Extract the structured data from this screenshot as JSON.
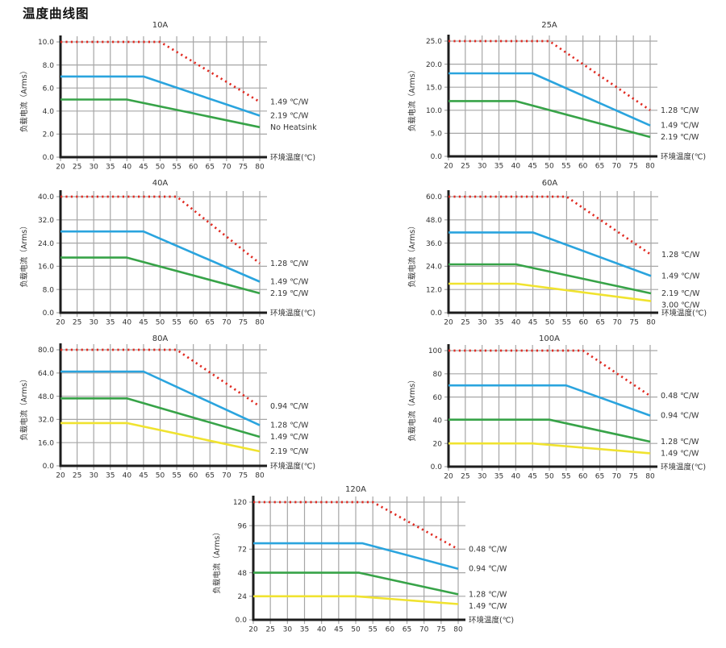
{
  "title": "温度曲线图",
  "colors": {
    "red": "#e02b22",
    "blue": "#2aa4de",
    "green": "#37a348",
    "yellow": "#f0e32f",
    "grid": "#a6a6a6",
    "axis": "#1d1d1d",
    "text": "#333333"
  },
  "chart_data": [
    {
      "type": "line",
      "title": "10A",
      "xlabel": "环境温度(℃)",
      "ylabel": "负载电流（Arms）",
      "x_ticks": [
        20,
        25,
        30,
        35,
        40,
        45,
        50,
        55,
        60,
        65,
        70,
        75,
        80
      ],
      "xlim": [
        20,
        80
      ],
      "ylim": [
        0,
        10
      ],
      "grid": true,
      "y_tick_labels": [
        "0.0",
        "2.0",
        "4.0",
        "6.0",
        "8.0",
        "10.0"
      ],
      "series": [
        {
          "name": "1.49 ℃/W",
          "color": "red",
          "style": "dotted",
          "points": [
            [
              20,
              10
            ],
            [
              50,
              10
            ],
            [
              80,
              4.8
            ]
          ]
        },
        {
          "name": "2.19 ℃/W",
          "color": "blue",
          "style": "solid",
          "points": [
            [
              20,
              7
            ],
            [
              45,
              7
            ],
            [
              80,
              3.6
            ]
          ]
        },
        {
          "name": "No Heatsink",
          "color": "green",
          "style": "solid",
          "points": [
            [
              20,
              5
            ],
            [
              40,
              5
            ],
            [
              80,
              2.6
            ]
          ]
        }
      ]
    },
    {
      "type": "line",
      "title": "25A",
      "xlabel": "环境温度(℃)",
      "ylabel": "负载电流（Arms）",
      "x_ticks": [
        20,
        25,
        30,
        35,
        40,
        45,
        50,
        55,
        60,
        65,
        70,
        75,
        80
      ],
      "xlim": [
        20,
        80
      ],
      "ylim": [
        0,
        25
      ],
      "grid": true,
      "y_tick_labels": [
        "0.0",
        "5.0",
        "10.0",
        "15.0",
        "20.0",
        "25.0"
      ],
      "series": [
        {
          "name": "1.28 ℃/W",
          "color": "red",
          "style": "dotted",
          "points": [
            [
              20,
              25
            ],
            [
              50,
              25
            ],
            [
              80,
              10
            ]
          ]
        },
        {
          "name": "1.49 ℃/W",
          "color": "blue",
          "style": "solid",
          "points": [
            [
              20,
              18
            ],
            [
              45,
              18
            ],
            [
              80,
              6.7
            ]
          ]
        },
        {
          "name": "2.19 ℃/W",
          "color": "green",
          "style": "solid",
          "points": [
            [
              20,
              12
            ],
            [
              40,
              12
            ],
            [
              80,
              4.2
            ]
          ]
        }
      ]
    },
    {
      "type": "line",
      "title": "40A",
      "xlabel": "环境温度(℃)",
      "ylabel": "负载电流（Arms）",
      "x_ticks": [
        20,
        25,
        30,
        35,
        40,
        45,
        50,
        55,
        60,
        65,
        70,
        75,
        80
      ],
      "xlim": [
        20,
        80
      ],
      "ylim": [
        0,
        40
      ],
      "grid": true,
      "y_tick_labels": [
        "0.0",
        "8.0",
        "16.0",
        "24.0",
        "32.0",
        "40.0"
      ],
      "series": [
        {
          "name": "1.28 ℃/W",
          "color": "red",
          "style": "dotted",
          "points": [
            [
              20,
              40
            ],
            [
              55,
              40
            ],
            [
              80,
              17
            ]
          ]
        },
        {
          "name": "1.49 ℃/W",
          "color": "blue",
          "style": "solid",
          "points": [
            [
              20,
              28
            ],
            [
              45,
              28
            ],
            [
              80,
              10.7
            ]
          ]
        },
        {
          "name": "2.19 ℃/W",
          "color": "green",
          "style": "solid",
          "points": [
            [
              20,
              19
            ],
            [
              40,
              19
            ],
            [
              80,
              6.7
            ]
          ]
        }
      ]
    },
    {
      "type": "line",
      "title": "60A",
      "xlabel": "环境温度(℃)",
      "ylabel": "负载电流（Arms）",
      "x_ticks": [
        20,
        25,
        30,
        35,
        40,
        45,
        50,
        55,
        60,
        65,
        70,
        75,
        80
      ],
      "xlim": [
        20,
        80
      ],
      "ylim": [
        0,
        60
      ],
      "grid": true,
      "y_tick_labels": [
        "0.0",
        "12.0",
        "24.0",
        "36.0",
        "48.0",
        "60.0"
      ],
      "series": [
        {
          "name": "1.28 ℃/W",
          "color": "red",
          "style": "dotted",
          "points": [
            [
              20,
              60
            ],
            [
              55,
              60
            ],
            [
              80,
              30
            ]
          ]
        },
        {
          "name": "1.49 ℃/W",
          "color": "blue",
          "style": "solid",
          "points": [
            [
              20,
              41.5
            ],
            [
              45,
              41.5
            ],
            [
              80,
              19
            ]
          ]
        },
        {
          "name": "2.19 ℃/W",
          "color": "green",
          "style": "solid",
          "points": [
            [
              20,
              25
            ],
            [
              40,
              25
            ],
            [
              80,
              10
            ]
          ]
        },
        {
          "name": "3.00 ℃/W",
          "color": "yellow",
          "style": "solid",
          "points": [
            [
              20,
              15
            ],
            [
              40,
              15
            ],
            [
              80,
              6
            ]
          ]
        }
      ]
    },
    {
      "type": "line",
      "title": "80A",
      "xlabel": "环境温度(℃)",
      "ylabel": "负载电流（Arms）",
      "x_ticks": [
        20,
        25,
        30,
        35,
        40,
        45,
        50,
        55,
        60,
        65,
        70,
        75,
        80
      ],
      "xlim": [
        20,
        80
      ],
      "ylim": [
        0,
        80
      ],
      "grid": true,
      "y_tick_labels": [
        "0.0",
        "16.0",
        "32.0",
        "48.0",
        "64.0",
        "80.0"
      ],
      "series": [
        {
          "name": "0.94 ℃/W",
          "color": "red",
          "style": "dotted",
          "points": [
            [
              20,
              80
            ],
            [
              55,
              80
            ],
            [
              80,
              41
            ]
          ]
        },
        {
          "name": "1.28 ℃/W",
          "color": "blue",
          "style": "solid",
          "points": [
            [
              20,
              65
            ],
            [
              45,
              65
            ],
            [
              80,
              28
            ]
          ]
        },
        {
          "name": "1.49 ℃/W",
          "color": "green",
          "style": "solid",
          "points": [
            [
              20,
              46.5
            ],
            [
              40,
              46.5
            ],
            [
              80,
              20
            ]
          ]
        },
        {
          "name": "2.19 ℃/W",
          "color": "yellow",
          "style": "solid",
          "points": [
            [
              20,
              29.5
            ],
            [
              40,
              29.5
            ],
            [
              80,
              10
            ]
          ]
        }
      ]
    },
    {
      "type": "line",
      "title": "100A",
      "xlabel": "环境温度(℃)",
      "ylabel": "负载电流（Arms）",
      "x_ticks": [
        20,
        25,
        30,
        35,
        40,
        45,
        50,
        55,
        60,
        65,
        70,
        75,
        80
      ],
      "xlim": [
        20,
        80
      ],
      "ylim": [
        0,
        100
      ],
      "grid": true,
      "y_tick_labels": [
        "0.0",
        "20",
        "40",
        "60",
        "80",
        "100"
      ],
      "series": [
        {
          "name": "0.48 ℃/W",
          "color": "red",
          "style": "dotted",
          "points": [
            [
              20,
              100
            ],
            [
              60,
              100
            ],
            [
              80,
              61
            ]
          ]
        },
        {
          "name": "0.94 ℃/W",
          "color": "blue",
          "style": "solid",
          "points": [
            [
              20,
              70
            ],
            [
              55,
              70
            ],
            [
              80,
              44
            ]
          ]
        },
        {
          "name": "1.28 ℃/W",
          "color": "green",
          "style": "solid",
          "points": [
            [
              20,
              40.5
            ],
            [
              50,
              40.5
            ],
            [
              80,
              21.5
            ]
          ]
        },
        {
          "name": "1.49 ℃/W",
          "color": "yellow",
          "style": "solid",
          "points": [
            [
              20,
              20
            ],
            [
              45,
              20
            ],
            [
              80,
              11.5
            ]
          ]
        }
      ]
    },
    {
      "type": "line",
      "title": "120A",
      "xlabel": "环境温度(℃)",
      "ylabel": "负载电流（Arms）",
      "x_ticks": [
        20,
        25,
        30,
        35,
        40,
        45,
        50,
        55,
        60,
        65,
        70,
        75,
        80
      ],
      "xlim": [
        20,
        80
      ],
      "ylim": [
        0,
        120
      ],
      "grid": true,
      "y_tick_labels": [
        "0.0",
        "24",
        "48",
        "72",
        "96",
        "120"
      ],
      "series": [
        {
          "name": "0.48 ℃/W",
          "color": "red",
          "style": "dotted",
          "points": [
            [
              20,
              120
            ],
            [
              55,
              120
            ],
            [
              80,
              72
            ]
          ]
        },
        {
          "name": "0.94 ℃/W",
          "color": "blue",
          "style": "solid",
          "points": [
            [
              20,
              78
            ],
            [
              52,
              78
            ],
            [
              80,
              52
            ]
          ]
        },
        {
          "name": "1.28 ℃/W",
          "color": "green",
          "style": "solid",
          "points": [
            [
              20,
              48
            ],
            [
              51,
              48
            ],
            [
              80,
              26
            ]
          ]
        },
        {
          "name": "1.49 ℃/W",
          "color": "yellow",
          "style": "solid",
          "points": [
            [
              20,
              24
            ],
            [
              50,
              24
            ],
            [
              80,
              16
            ]
          ]
        }
      ]
    }
  ]
}
